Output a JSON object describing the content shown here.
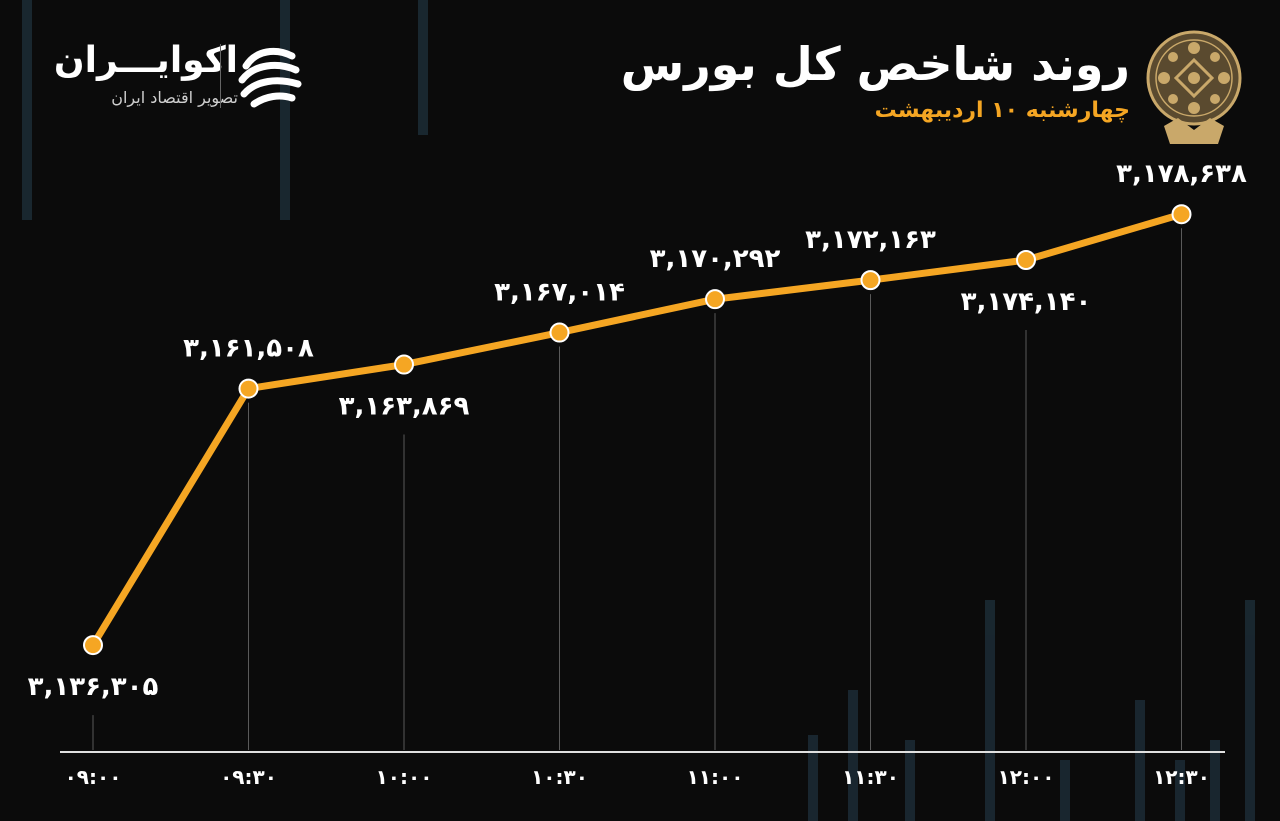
{
  "header": {
    "title": "روند شاخص کل بورس",
    "subtitle": "چهارشنبه ۱۰ اردیبهشت"
  },
  "brand": {
    "name": "اکوایـــران",
    "tagline": "تصویر اقتصاد ایران"
  },
  "colors": {
    "background": "#0b0b0b",
    "line": "#f5a623",
    "marker_fill": "#f5a623",
    "marker_stroke": "#ffffff",
    "subtitle": "#f5a623",
    "text": "#ffffff"
  },
  "chart_data": {
    "type": "line",
    "title": "روند شاخص کل بورس",
    "x": [
      "۰۹:۰۰",
      "۰۹:۳۰",
      "۱۰:۰۰",
      "۱۰:۳۰",
      "۱۱:۰۰",
      "۱۱:۳۰",
      "۱۲:۰۰",
      "۱۲:۳۰"
    ],
    "values": [
      3136305,
      3161508,
      3163869,
      3167014,
      3170292,
      3172163,
      3174140,
      3178638
    ],
    "value_labels": [
      "۳,۱۳۶,۳۰۵",
      "۳,۱۶۱,۵۰۸",
      "۳,۱۶۳,۸۶۹",
      "۳,۱۶۷,۰۱۴",
      "۳,۱۷۰,۲۹۲",
      "۳,۱۷۲,۱۶۳",
      "۳,۱۷۴,۱۴۰",
      "۳,۱۷۸,۶۳۸"
    ],
    "label_position": [
      "below",
      "above",
      "below",
      "above",
      "above",
      "above",
      "below",
      "above"
    ],
    "ylim": [
      3126000,
      3182000
    ],
    "grid": false,
    "xlabel": "",
    "ylabel": ""
  }
}
